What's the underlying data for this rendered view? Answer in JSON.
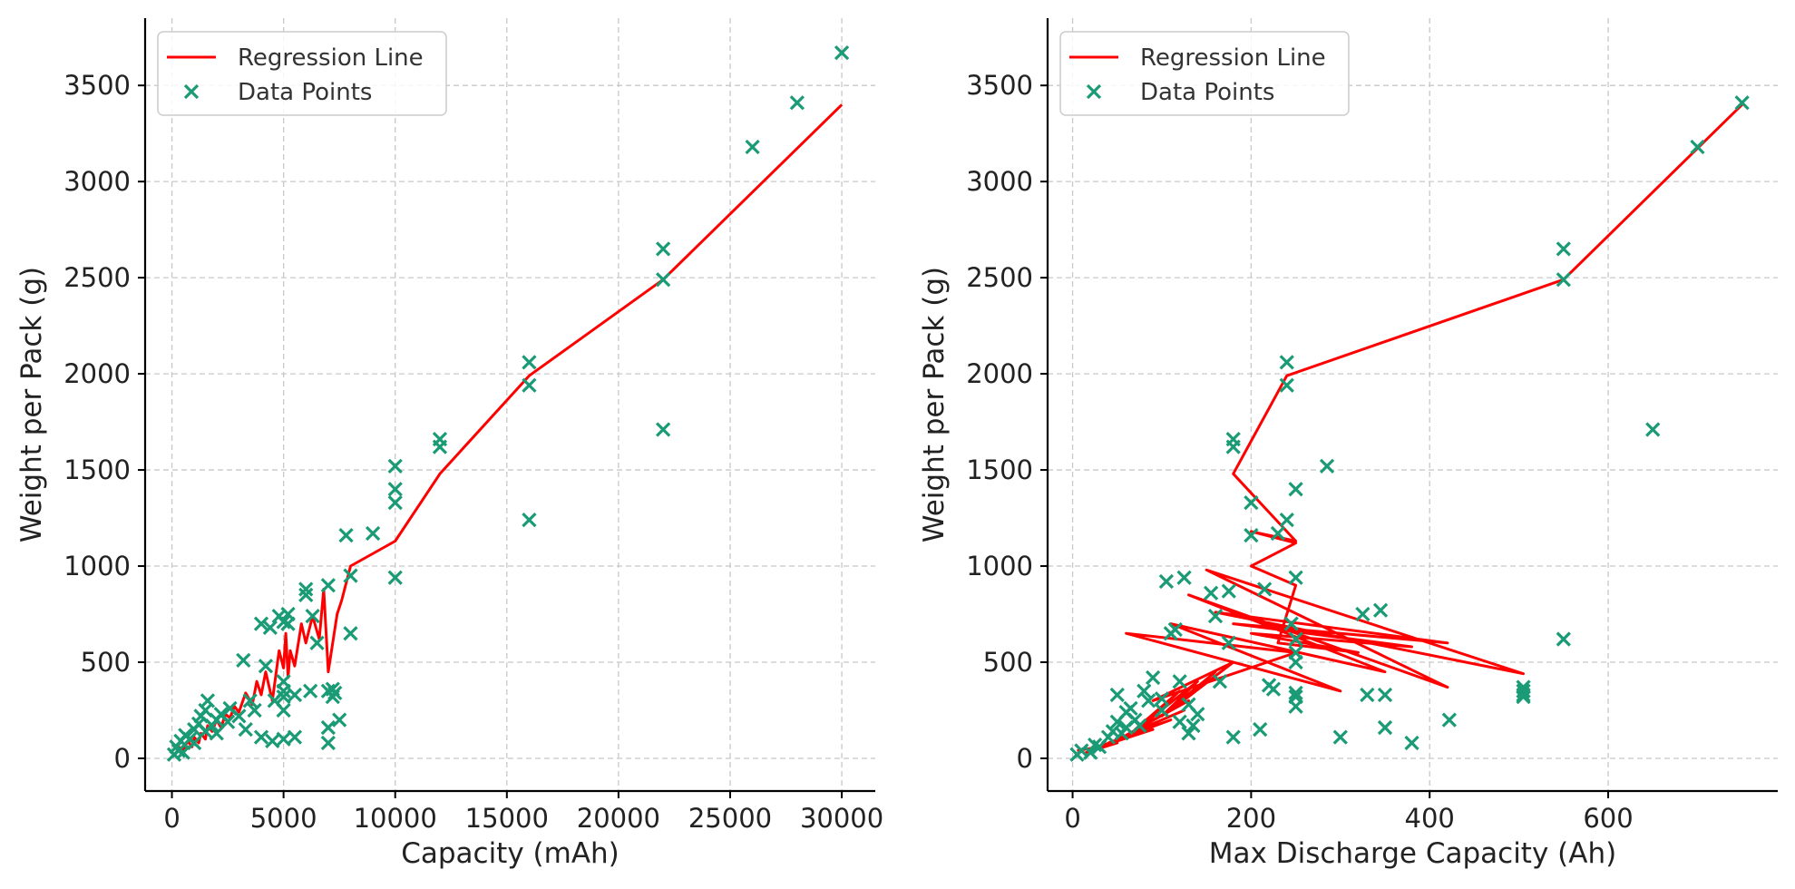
{
  "colors": {
    "regression": "#ff0000",
    "points": "#1a9b76",
    "grid": "#c8c8c8",
    "axis": "#000000"
  },
  "chart_data": [
    {
      "type": "scatter",
      "xlabel": "Capacity (mAh)",
      "ylabel": "Weight per Pack (g)",
      "xlim": [
        -1200,
        31500
      ],
      "ylim": [
        -170,
        3850
      ],
      "xticks": [
        0,
        5000,
        10000,
        15000,
        20000,
        25000,
        30000
      ],
      "yticks": [
        0,
        500,
        1000,
        1500,
        2000,
        2500,
        3000,
        3500
      ],
      "xtick_labels": [
        "0",
        "5000",
        "10000",
        "15000",
        "20000",
        "25000",
        "30000"
      ],
      "ytick_labels": [
        "0",
        "500",
        "1000",
        "1500",
        "2000",
        "2500",
        "3000",
        "3500"
      ],
      "grid": true,
      "legend": {
        "position": "top-left",
        "entries": [
          "Regression Line",
          "Data Points"
        ]
      },
      "series": [
        {
          "name": "Regression Line",
          "kind": "line",
          "x": [
            200,
            300,
            500,
            700,
            900,
            1000,
            1200,
            1300,
            1500,
            1600,
            1800,
            2000,
            2200,
            2400,
            2600,
            2800,
            3000,
            3300,
            3600,
            3800,
            4000,
            4200,
            4500,
            4800,
            5000,
            5100,
            5200,
            5300,
            5500,
            5800,
            6000,
            6300,
            6600,
            6800,
            7000,
            7200,
            7400,
            7600,
            8000,
            10000,
            12000,
            16000,
            22000,
            30000
          ],
          "y": [
            30,
            60,
            40,
            90,
            60,
            110,
            80,
            130,
            100,
            170,
            140,
            200,
            160,
            230,
            210,
            270,
            240,
            340,
            280,
            400,
            330,
            450,
            300,
            560,
            470,
            650,
            420,
            560,
            480,
            700,
            600,
            740,
            620,
            880,
            450,
            600,
            750,
            820,
            1000,
            1130,
            1480,
            1990,
            2490,
            3400
          ]
        },
        {
          "name": "Data Points",
          "kind": "scatter",
          "x": [
            100,
            200,
            300,
            400,
            500,
            600,
            800,
            1000,
            1000,
            1200,
            1300,
            1500,
            1500,
            1600,
            1800,
            2000,
            2000,
            2200,
            2500,
            2600,
            3000,
            3200,
            3300,
            3500,
            3700,
            4000,
            4000,
            4200,
            4400,
            4500,
            4600,
            4800,
            5000,
            5000,
            5000,
            5000,
            5000,
            5000,
            5200,
            5200,
            5500,
            5500,
            6000,
            6000,
            6200,
            6300,
            6500,
            7000,
            7000,
            7000,
            7000,
            7200,
            7200,
            7300,
            7500,
            7800,
            8000,
            8000,
            9000,
            10000,
            10000,
            10000,
            10000,
            12000,
            12000,
            16000,
            16000,
            16000,
            22000,
            22000,
            22000,
            26000,
            28000,
            30000
          ],
          "y": [
            20,
            60,
            40,
            90,
            30,
            120,
            100,
            150,
            80,
            180,
            220,
            140,
            250,
            300,
            170,
            200,
            130,
            230,
            190,
            260,
            220,
            510,
            150,
            300,
            250,
            700,
            110,
            480,
            680,
            90,
            300,
            740,
            250,
            320,
            350,
            400,
            710,
            100,
            700,
            750,
            330,
            110,
            880,
            850,
            350,
            740,
            600,
            80,
            160,
            350,
            900,
            320,
            360,
            340,
            200,
            1160,
            650,
            950,
            1170,
            940,
            1330,
            1400,
            1520,
            1620,
            1660,
            1240,
            1940,
            2060,
            1710,
            2490,
            2650,
            3180,
            3410,
            3670
          ]
        }
      ]
    },
    {
      "type": "scatter",
      "xlabel": "Max Discharge Capacity (Ah)",
      "ylabel": "Weight per Pack (g)",
      "xlim": [
        -28,
        790
      ],
      "ylim": [
        -170,
        3850
      ],
      "xticks": [
        0,
        200,
        400,
        600
      ],
      "yticks": [
        0,
        500,
        1000,
        1500,
        2000,
        2500,
        3000,
        3500
      ],
      "xtick_labels": [
        "0",
        "200",
        "400",
        "600"
      ],
      "ytick_labels": [
        "0",
        "500",
        "1000",
        "1500",
        "2000",
        "2500",
        "3000",
        "3500"
      ],
      "grid": true,
      "legend": {
        "position": "top-left",
        "entries": [
          "Regression Line",
          "Data Points"
        ]
      },
      "series": [
        {
          "name": "Regression Line",
          "kind": "line",
          "x": [
            5,
            30,
            15,
            50,
            20,
            70,
            30,
            90,
            40,
            110,
            50,
            125,
            60,
            130,
            70,
            120,
            80,
            140,
            100,
            160,
            110,
            180,
            90,
            250,
            60,
            300,
            110,
            350,
            130,
            420,
            150,
            505,
            160,
            420,
            180,
            380,
            200,
            320,
            230,
            250,
            200,
            250,
            200,
            230,
            250,
            180,
            240,
            550,
            750
          ],
          "y": [
            40,
            60,
            30,
            80,
            50,
            120,
            60,
            150,
            80,
            200,
            100,
            250,
            120,
            300,
            150,
            350,
            180,
            400,
            220,
            450,
            250,
            500,
            300,
            550,
            650,
            350,
            700,
            450,
            850,
            370,
            980,
            440,
            760,
            600,
            700,
            580,
            650,
            550,
            600,
            900,
            1000,
            1120,
            1180,
            1150,
            1130,
            1480,
            1990,
            2490,
            3400
          ]
        },
        {
          "name": "Data Points",
          "kind": "scatter",
          "x": [
            5,
            10,
            20,
            25,
            30,
            40,
            45,
            50,
            50,
            55,
            60,
            60,
            65,
            70,
            75,
            80,
            85,
            90,
            100,
            100,
            105,
            110,
            115,
            120,
            120,
            125,
            130,
            130,
            135,
            140,
            155,
            160,
            165,
            175,
            175,
            180,
            180,
            180,
            200,
            200,
            210,
            215,
            220,
            225,
            230,
            240,
            240,
            240,
            245,
            250,
            250,
            250,
            250,
            250,
            250,
            250,
            250,
            285,
            300,
            325,
            330,
            345,
            350,
            350,
            380,
            422,
            505,
            505,
            505,
            505,
            550,
            550,
            550,
            650,
            700,
            750
          ],
          "y": [
            20,
            40,
            30,
            70,
            60,
            110,
            140,
            190,
            330,
            130,
            160,
            240,
            260,
            200,
            170,
            350,
            300,
            420,
            310,
            250,
            920,
            650,
            670,
            190,
            400,
            940,
            130,
            280,
            170,
            230,
            860,
            740,
            400,
            870,
            600,
            110,
            1620,
            1660,
            1160,
            1330,
            150,
            880,
            380,
            360,
            1170,
            2060,
            1940,
            1240,
            700,
            620,
            500,
            550,
            270,
            320,
            340,
            940,
            1400,
            1520,
            110,
            750,
            330,
            770,
            330,
            160,
            80,
            200,
            330,
            320,
            350,
            370,
            620,
            2490,
            2650,
            1710,
            3180,
            3410
          ]
        }
      ]
    }
  ]
}
